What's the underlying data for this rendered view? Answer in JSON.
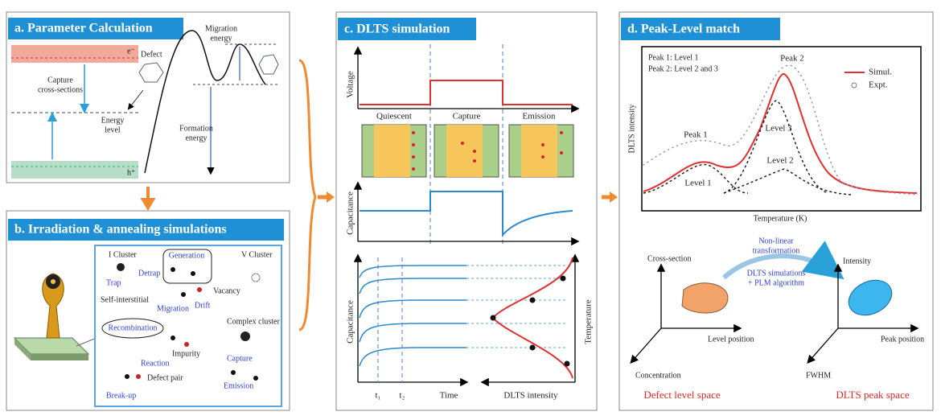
{
  "panel_a": {
    "title": "a. Parameter Calculation",
    "defect": "Defect",
    "migration_energy": [
      "Migration",
      "energy"
    ],
    "capture_cross_sections": [
      "Capture",
      "cross-sections"
    ],
    "energy_level": [
      "Energy",
      "level"
    ],
    "formation_energy": [
      "Formation",
      "energy"
    ],
    "electron": "e⁻",
    "hole": "h⁺"
  },
  "panel_b": {
    "title": "b. Irradiation & annealing simulations",
    "i_cluster": "I Cluster",
    "detrap": "Detrap",
    "trap": "Trap",
    "generation": "Generation",
    "v_cluster": "V Cluster",
    "self_interstitial": "Self-interstitial",
    "vacancy": "Vacancy",
    "migration": "Migration",
    "drift": "Drift",
    "recombination": "Recombination",
    "complex_cluster": "Complex cluster",
    "impurity": "Impurity",
    "reaction": "Reaction",
    "defect_pair": "Defect pair",
    "break_up": "Break-up",
    "capture": "Capture",
    "emission": "Emission"
  },
  "panel_c": {
    "title": "c. DLTS simulation",
    "voltage": "Voltage",
    "quiescent": "Quiescent",
    "capture": "Capture",
    "emission": "Emission",
    "capacitance_top": "Capacitance",
    "capacitance_bottom": "Capacitance",
    "temperature": "Temperature",
    "t1": "t₁",
    "t2": "t₂",
    "time": "Time",
    "dlts_intensity": "DLTS intensity"
  },
  "panel_d": {
    "title": "d. Peak-Level match",
    "note": [
      "Peak 1: Level 1",
      "Peak 2: Level 2 and 3"
    ],
    "legend": [
      "Simul.",
      "Expt."
    ],
    "peak_2": "Peak 2",
    "peak_1": "Peak 1",
    "level_3": "Level 3",
    "level_2": "Level 2",
    "level_1": "Level 1",
    "y_label": "DLTS intensity",
    "x_label": "Temperature (K)",
    "cross_section": "Cross-section",
    "transformation": [
      "Non-linear",
      "transformation"
    ],
    "method": [
      "DLTS simulations",
      "+ PLM algorithm"
    ],
    "intensity": "Intensity",
    "level_position": "Level position",
    "peak_position": "Peak position",
    "concentration": "Concentration",
    "fwhm": "FWHM",
    "defect_level_space": "Defect level space",
    "dlts_peak_space": "DLTS peak space"
  }
}
